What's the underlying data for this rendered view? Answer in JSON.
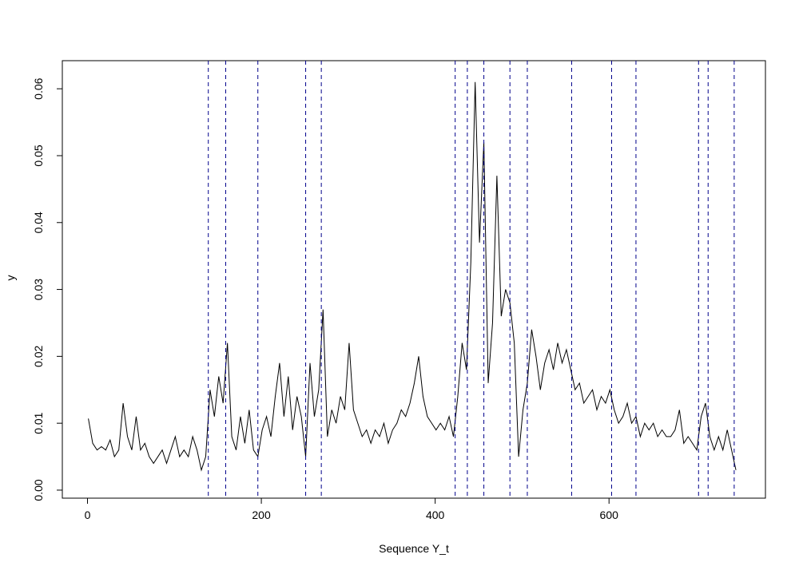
{
  "chart_data": {
    "type": "line",
    "xlabel": "Sequence Y_t",
    "ylabel": "y",
    "color": "#000000",
    "x": [
      1,
      6,
      11,
      16,
      21,
      26,
      31,
      36,
      41,
      46,
      51,
      56,
      61,
      66,
      71,
      76,
      81,
      86,
      91,
      96,
      101,
      106,
      111,
      116,
      121,
      126,
      131,
      136,
      141,
      146,
      151,
      156,
      161,
      166,
      171,
      176,
      181,
      186,
      191,
      196,
      201,
      206,
      211,
      216,
      221,
      226,
      231,
      236,
      241,
      246,
      251,
      256,
      261,
      266,
      271,
      276,
      281,
      286,
      291,
      296,
      301,
      306,
      311,
      316,
      321,
      326,
      331,
      336,
      341,
      346,
      351,
      356,
      361,
      366,
      371,
      376,
      381,
      386,
      391,
      396,
      401,
      406,
      411,
      416,
      421,
      426,
      431,
      436,
      441,
      446,
      451,
      456,
      461,
      466,
      471,
      476,
      481,
      486,
      491,
      496,
      501,
      506,
      511,
      516,
      521,
      526,
      531,
      536,
      541,
      546,
      551,
      556,
      561,
      566,
      571,
      576,
      581,
      586,
      591,
      596,
      601,
      606,
      611,
      616,
      621,
      626,
      631,
      636,
      641,
      646,
      651,
      656,
      661,
      666,
      671,
      676,
      681,
      686,
      691,
      696,
      701,
      706,
      711,
      716,
      721,
      726,
      731,
      736,
      741,
      746
    ],
    "values": [
      0.0107,
      0.007,
      0.006,
      0.0065,
      0.006,
      0.0075,
      0.005,
      0.006,
      0.013,
      0.008,
      0.006,
      0.011,
      0.006,
      0.007,
      0.005,
      0.004,
      0.005,
      0.006,
      0.004,
      0.006,
      0.008,
      0.005,
      0.006,
      0.005,
      0.008,
      0.006,
      0.003,
      0.005,
      0.015,
      0.011,
      0.017,
      0.013,
      0.022,
      0.008,
      0.006,
      0.011,
      0.007,
      0.012,
      0.006,
      0.005,
      0.009,
      0.011,
      0.008,
      0.014,
      0.019,
      0.011,
      0.017,
      0.009,
      0.014,
      0.011,
      0.005,
      0.019,
      0.011,
      0.015,
      0.027,
      0.008,
      0.012,
      0.01,
      0.014,
      0.012,
      0.022,
      0.012,
      0.01,
      0.008,
      0.009,
      0.007,
      0.009,
      0.008,
      0.01,
      0.007,
      0.009,
      0.01,
      0.012,
      0.011,
      0.013,
      0.016,
      0.02,
      0.014,
      0.011,
      0.01,
      0.009,
      0.01,
      0.009,
      0.011,
      0.008,
      0.014,
      0.022,
      0.018,
      0.034,
      0.061,
      0.037,
      0.052,
      0.016,
      0.025,
      0.047,
      0.026,
      0.03,
      0.028,
      0.022,
      0.005,
      0.012,
      0.016,
      0.024,
      0.02,
      0.015,
      0.019,
      0.021,
      0.018,
      0.022,
      0.019,
      0.021,
      0.018,
      0.015,
      0.016,
      0.013,
      0.014,
      0.015,
      0.012,
      0.014,
      0.013,
      0.015,
      0.012,
      0.01,
      0.011,
      0.013,
      0.01,
      0.011,
      0.008,
      0.01,
      0.009,
      0.01,
      0.008,
      0.009,
      0.008,
      0.008,
      0.009,
      0.012,
      0.007,
      0.008,
      0.007,
      0.006,
      0.011,
      0.013,
      0.008,
      0.006,
      0.008,
      0.006,
      0.009,
      0.006,
      0.003
    ],
    "vlines": [
      139,
      159,
      196,
      251,
      269,
      423,
      437,
      456,
      486,
      506,
      557,
      603,
      631,
      703,
      714,
      744
    ],
    "vline_color": "#00008b",
    "xlim": [
      -28.96,
      779.96
    ],
    "ylim": [
      -0.0012,
      0.0642
    ],
    "xticks": [
      0,
      200,
      400,
      600
    ],
    "yticks": [
      {
        "value": 0,
        "label": "0.00"
      },
      0.01,
      0.02,
      0.03,
      0.04,
      0.05,
      0.06
    ]
  }
}
